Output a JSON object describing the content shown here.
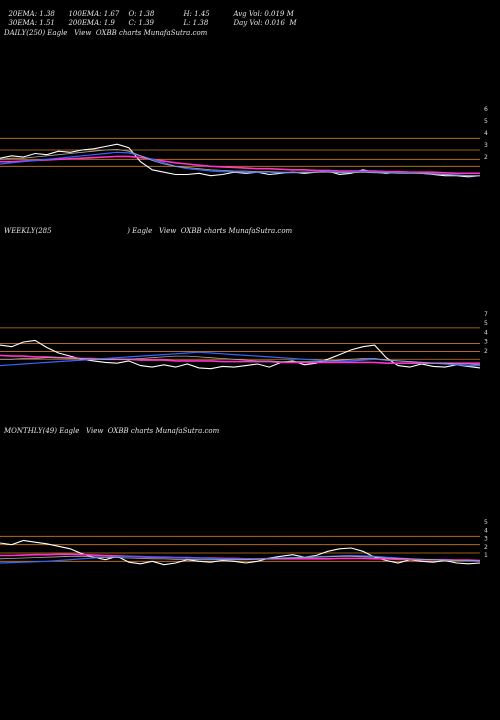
{
  "header": {
    "row1": {
      "ema20": "20EMA: 1.38",
      "ema100": "100EMA: 1.67",
      "open": "O: 1.38",
      "high": "H: 1.45",
      "avgvol": "Avg Vol: 0.019 M"
    },
    "row2": {
      "ema30": "30EMA: 1.51",
      "ema200": "200EMA: 1.9",
      "close": "C: 1.39",
      "low": "L: 1.38",
      "dayvol": "Day Vol: 0.016  M"
    }
  },
  "colors": {
    "background": "#000000",
    "price": "#ffffff",
    "ema_pink": "#ff33cc",
    "ema_blue": "#3366ff",
    "ema_gray": "#aaaaaa",
    "level": "#cc7a22"
  },
  "chart_data": [
    {
      "type": "line",
      "title": "DAILY(250) Eagle   View  OXBB charts MunafaSutra.com",
      "y_ticks": [
        "6",
        "5",
        "4",
        "3",
        "2"
      ],
      "ylim": [
        1,
        7
      ],
      "levels": [
        5,
        4,
        3.2,
        2.6
      ],
      "series": [
        {
          "role": "price",
          "values": [
            3.3,
            3.5,
            3.4,
            3.7,
            3.6,
            3.9,
            3.8,
            4.0,
            4.1,
            4.3,
            4.5,
            4.2,
            3.0,
            2.3,
            2.1,
            1.9,
            1.9,
            2.0,
            1.8,
            1.9,
            2.1,
            2.0,
            2.1,
            1.9,
            2.0,
            2.1,
            2.0,
            2.1,
            2.2,
            1.9,
            2.0,
            2.3,
            2.1,
            2.0,
            2.1,
            2.1,
            2.0,
            1.9,
            1.8,
            1.8,
            1.7,
            1.8
          ]
        },
        {
          "role": "ema_pink",
          "values": [
            3.0,
            3.0,
            3.05,
            3.1,
            3.15,
            3.2,
            3.25,
            3.3,
            3.35,
            3.4,
            3.45,
            3.45,
            3.35,
            3.2,
            3.05,
            2.9,
            2.8,
            2.7,
            2.6,
            2.55,
            2.5,
            2.45,
            2.4,
            2.4,
            2.35,
            2.3,
            2.3,
            2.25,
            2.25,
            2.2,
            2.2,
            2.2,
            2.2,
            2.15,
            2.15,
            2.1,
            2.1,
            2.1,
            2.05,
            2.0,
            2.0,
            2.0
          ]
        },
        {
          "role": "ema_blue",
          "values": [
            2.8,
            2.9,
            3.0,
            3.1,
            3.2,
            3.3,
            3.4,
            3.5,
            3.6,
            3.7,
            3.8,
            3.75,
            3.5,
            3.2,
            2.9,
            2.6,
            2.4,
            2.3,
            2.2,
            2.15,
            2.15,
            2.1,
            2.1,
            2.1,
            2.05,
            2.05,
            2.1,
            2.1,
            2.15,
            2.1,
            2.1,
            2.15,
            2.1,
            2.1,
            2.05,
            2.05,
            2.0,
            1.95,
            1.9,
            1.85,
            1.8,
            1.8
          ]
        },
        {
          "role": "ema_gray",
          "values": [
            3.2,
            3.3,
            3.3,
            3.4,
            3.5,
            3.6,
            3.7,
            3.8,
            3.9,
            4.0,
            4.05,
            3.9,
            3.5,
            3.1,
            2.8,
            2.6,
            2.5,
            2.4,
            2.3,
            2.25,
            2.2,
            2.2,
            2.15,
            2.15,
            2.1,
            2.1,
            2.1,
            2.1,
            2.1,
            2.05,
            2.05,
            2.1,
            2.05,
            2.05,
            2.0,
            2.0,
            2.0,
            1.95,
            1.9,
            1.85,
            1.8,
            1.8
          ]
        }
      ]
    },
    {
      "type": "line",
      "title": "WEEKLY(285                                  ) Eagle   View  OXBB charts MunafaSutra.com",
      "y_ticks": [
        "7",
        "5",
        "4",
        "3",
        "2"
      ],
      "ylim": [
        1,
        8
      ],
      "levels": [
        7,
        5,
        4,
        3
      ],
      "series": [
        {
          "role": "price",
          "values": [
            4.8,
            4.6,
            5.2,
            5.4,
            4.5,
            3.8,
            3.4,
            3.0,
            2.8,
            2.6,
            2.5,
            2.8,
            2.2,
            2.0,
            2.3,
            2.0,
            2.4,
            1.9,
            1.8,
            2.1,
            2.0,
            2.2,
            2.4,
            2.0,
            2.6,
            2.8,
            2.3,
            2.5,
            3.0,
            3.6,
            4.2,
            4.6,
            4.8,
            3.2,
            2.2,
            2.0,
            2.4,
            2.1,
            2.0,
            2.3,
            2.1,
            1.9
          ]
        },
        {
          "role": "ema_pink",
          "values": [
            3.5,
            3.4,
            3.4,
            3.3,
            3.3,
            3.2,
            3.2,
            3.1,
            3.1,
            3.0,
            3.0,
            3.0,
            2.9,
            2.9,
            2.9,
            2.8,
            2.8,
            2.8,
            2.8,
            2.7,
            2.7,
            2.7,
            2.7,
            2.7,
            2.6,
            2.6,
            2.6,
            2.6,
            2.6,
            2.6,
            2.6,
            2.6,
            2.6,
            2.5,
            2.5,
            2.5,
            2.5,
            2.5,
            2.5,
            2.5,
            2.5,
            2.5
          ]
        },
        {
          "role": "ema_blue",
          "values": [
            2.2,
            2.3,
            2.4,
            2.5,
            2.6,
            2.7,
            2.8,
            2.9,
            3.0,
            3.1,
            3.2,
            3.3,
            3.4,
            3.5,
            3.6,
            3.7,
            3.8,
            3.9,
            3.8,
            3.7,
            3.6,
            3.5,
            3.4,
            3.3,
            3.2,
            3.1,
            3.0,
            2.9,
            2.8,
            2.8,
            2.8,
            2.9,
            3.0,
            2.9,
            2.8,
            2.7,
            2.6,
            2.5,
            2.4,
            2.3,
            2.2,
            2.2
          ]
        },
        {
          "role": "ema_gray",
          "values": [
            3.0,
            3.0,
            3.1,
            3.1,
            3.2,
            3.2,
            3.1,
            3.1,
            3.0,
            3.0,
            3.0,
            3.0,
            3.1,
            3.2,
            3.3,
            3.4,
            3.4,
            3.3,
            3.2,
            3.1,
            3.0,
            2.9,
            2.8,
            2.8,
            2.7,
            2.7,
            2.7,
            2.7,
            2.8,
            2.9,
            3.0,
            3.1,
            3.1,
            2.9,
            2.8,
            2.7,
            2.6,
            2.5,
            2.5,
            2.4,
            2.4,
            2.3
          ]
        }
      ]
    },
    {
      "type": "line",
      "title": "MONTHLY(49) Eagle   View  OXBB charts MunafaSutra.com",
      "y_ticks": [
        "5",
        "4",
        "3",
        "2",
        "1"
      ],
      "ylim": [
        0,
        6
      ],
      "levels": [
        5,
        4,
        3,
        2
      ],
      "series": [
        {
          "role": "price",
          "values": [
            4.2,
            4.0,
            4.5,
            4.3,
            4.1,
            3.8,
            3.5,
            2.9,
            2.5,
            2.2,
            2.6,
            1.9,
            1.7,
            2.0,
            1.6,
            1.8,
            2.2,
            2.0,
            1.9,
            2.1,
            2.0,
            1.8,
            2.0,
            2.4,
            2.6,
            2.8,
            2.5,
            2.7,
            3.2,
            3.5,
            3.6,
            3.2,
            2.5,
            2.1,
            1.8,
            2.2,
            2.0,
            1.9,
            2.1,
            1.8,
            1.7,
            1.8
          ]
        },
        {
          "role": "ema_pink",
          "values": [
            2.7,
            2.7,
            2.75,
            2.8,
            2.8,
            2.85,
            2.85,
            2.8,
            2.75,
            2.7,
            2.65,
            2.6,
            2.55,
            2.5,
            2.5,
            2.45,
            2.45,
            2.4,
            2.4,
            2.35,
            2.35,
            2.3,
            2.3,
            2.3,
            2.3,
            2.3,
            2.3,
            2.3,
            2.3,
            2.35,
            2.35,
            2.35,
            2.3,
            2.3,
            2.25,
            2.25,
            2.2,
            2.2,
            2.2,
            2.15,
            2.15,
            2.1
          ]
        },
        {
          "role": "ema_blue",
          "values": [
            1.8,
            1.85,
            1.9,
            1.95,
            2.0,
            2.1,
            2.2,
            2.3,
            2.4,
            2.5,
            2.55,
            2.6,
            2.6,
            2.55,
            2.5,
            2.45,
            2.4,
            2.4,
            2.35,
            2.3,
            2.3,
            2.3,
            2.3,
            2.35,
            2.4,
            2.45,
            2.5,
            2.55,
            2.6,
            2.65,
            2.7,
            2.65,
            2.6,
            2.5,
            2.4,
            2.3,
            2.25,
            2.2,
            2.15,
            2.1,
            2.05,
            2.0
          ]
        },
        {
          "role": "ema_gray",
          "values": [
            2.3,
            2.35,
            2.4,
            2.45,
            2.5,
            2.55,
            2.6,
            2.6,
            2.55,
            2.5,
            2.45,
            2.4,
            2.35,
            2.3,
            2.3,
            2.25,
            2.25,
            2.2,
            2.2,
            2.2,
            2.2,
            2.2,
            2.25,
            2.3,
            2.35,
            2.4,
            2.45,
            2.5,
            2.55,
            2.6,
            2.6,
            2.55,
            2.5,
            2.4,
            2.35,
            2.3,
            2.25,
            2.2,
            2.15,
            2.1,
            2.1,
            2.05
          ]
        }
      ]
    }
  ]
}
